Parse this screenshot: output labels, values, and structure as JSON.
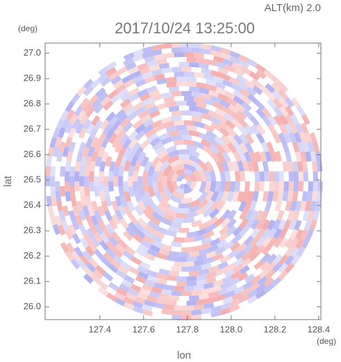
{
  "chart_data": {
    "type": "radar-field",
    "title": "2017/10/24 13:25:00",
    "subtitle": "ALT(km) 2.0",
    "x_label": "lon",
    "y_label": "lat",
    "x_unit": "(deg)",
    "y_unit": "(deg)",
    "xlim": [
      127.15,
      128.41
    ],
    "ylim": [
      25.95,
      27.04
    ],
    "xticks": [
      127.4,
      127.6,
      127.8,
      {
        "value": 128.0,
        "label": "128.0"
      },
      128.2,
      128.4
    ],
    "yticks": [
      {
        "value": 26.0,
        "label": "26.0"
      },
      26.1,
      26.2,
      26.3,
      26.4,
      26.5,
      26.6,
      26.7,
      26.8,
      26.9,
      {
        "value": 27.0,
        "label": "27.0"
      }
    ],
    "colors": [
      "#f4a5a5",
      "#a9a9f2"
    ]
  }
}
